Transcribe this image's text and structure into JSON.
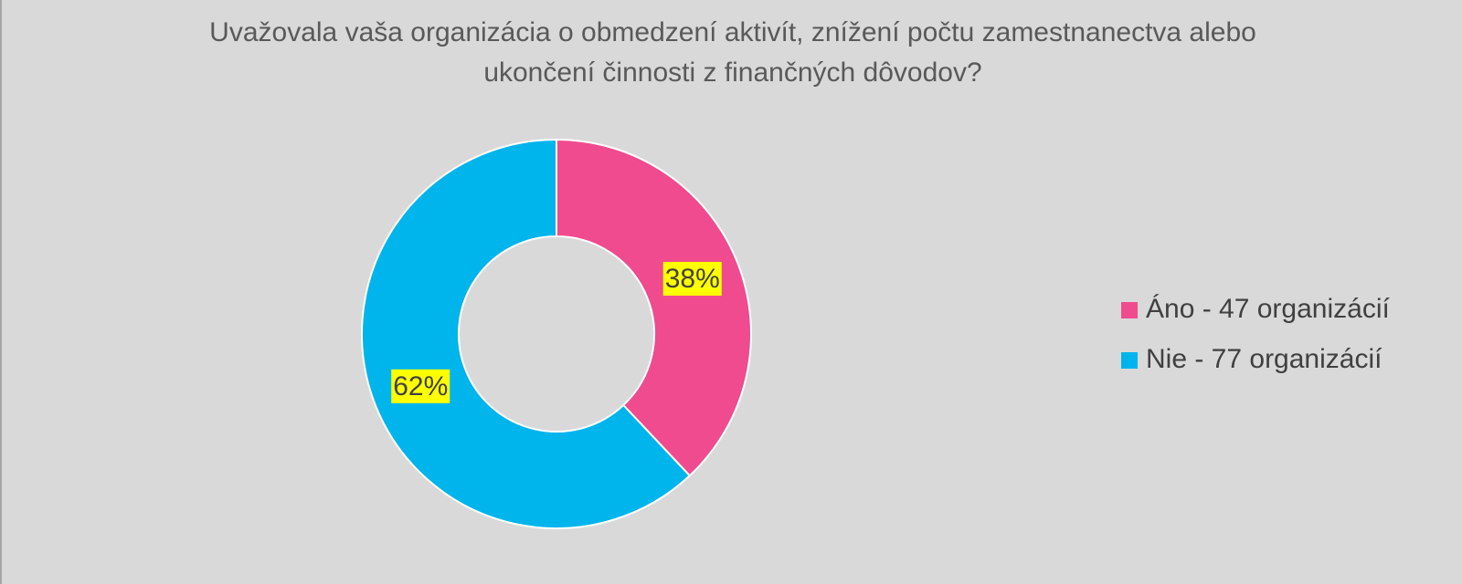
{
  "chart_data": {
    "type": "donut",
    "title": "Uvažovala vaša organizácia o obmedzení aktivít, znížení počtu zamestnanectva alebo ukončení činnosti z finančných dôvodov?",
    "categories": [
      "Áno - 47 organizácií",
      "Nie - 77 organizácií"
    ],
    "values": [
      38,
      62
    ],
    "value_labels": [
      "38%",
      "62%"
    ],
    "colors": [
      "#ef4b8e",
      "#00b4ec"
    ],
    "legend": "right"
  }
}
